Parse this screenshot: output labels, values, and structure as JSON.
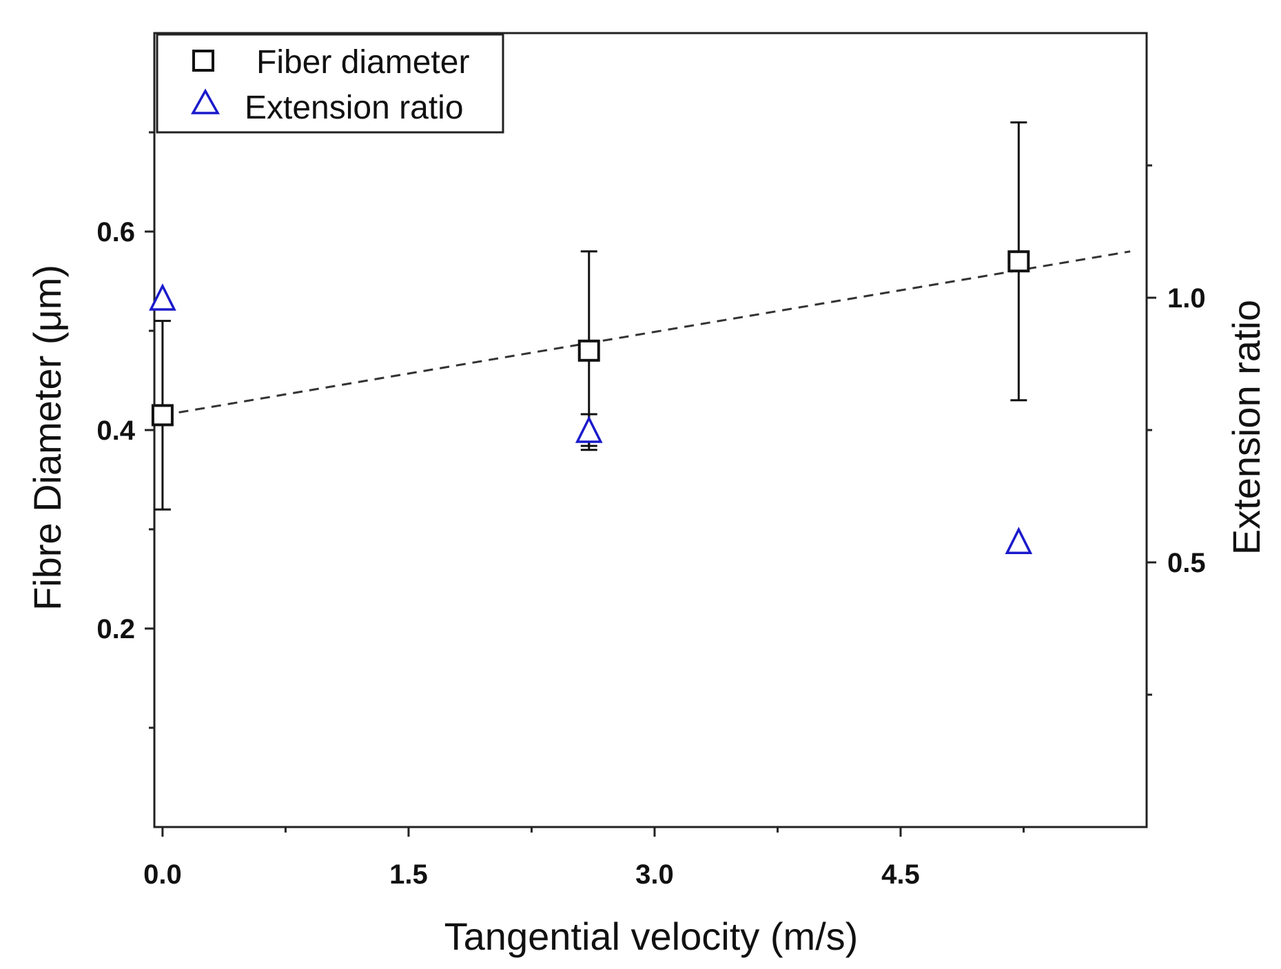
{
  "colors": {
    "axis": "#222222",
    "fiber_diameter": "#111111",
    "extension_ratio": "#1a1acc",
    "trend": "#333333"
  },
  "chart_data": {
    "type": "scatter",
    "title": "",
    "xlabel": "Tangential velocity (m/s)",
    "ylabel": "Fibre Diameter (μm)",
    "y2label": "Extension ratio",
    "xlim": [
      -0.05,
      6.0
    ],
    "ylim": [
      0.0,
      0.8
    ],
    "y2lim": [
      0.0,
      1.5
    ],
    "xticks": [
      0.0,
      1.5,
      3.0,
      4.5
    ],
    "xtick_labels": [
      "0.0",
      "1.5",
      "3.0",
      "4.5"
    ],
    "x_minor_ticks": [
      0.75,
      2.25,
      3.75,
      5.25
    ],
    "yticks": [
      0.2,
      0.4,
      0.6
    ],
    "ytick_labels": [
      "0.2",
      "0.4",
      "0.6"
    ],
    "y_minor_ticks": [
      0.1,
      0.3,
      0.5,
      0.7
    ],
    "y2ticks": [
      0.5,
      1.0
    ],
    "y2tick_labels": [
      "0.5",
      "1.0"
    ],
    "y2_minor_ticks": [
      0.25,
      0.75,
      1.25
    ],
    "legend": {
      "position": "top-left",
      "entries": [
        "Fiber diameter",
        "Extension ratio"
      ]
    },
    "series": [
      {
        "name": "Fiber diameter",
        "axis": "left",
        "marker": "square",
        "x": [
          0.0,
          2.6,
          5.22
        ],
        "y": [
          0.415,
          0.48,
          0.57
        ],
        "yerr": [
          0.095,
          0.1,
          0.14
        ]
      },
      {
        "name": "Extension ratio",
        "axis": "right",
        "marker": "triangle",
        "x": [
          0.0,
          2.6,
          5.22
        ],
        "y": [
          1.0,
          0.75,
          0.54
        ],
        "yerr": [
          0.0,
          0.03,
          0.0
        ]
      }
    ],
    "trendline": {
      "series": "Fiber diameter",
      "style": "dashed",
      "x": [
        0.0,
        5.9
      ],
      "y": [
        0.415,
        0.58
      ]
    }
  }
}
